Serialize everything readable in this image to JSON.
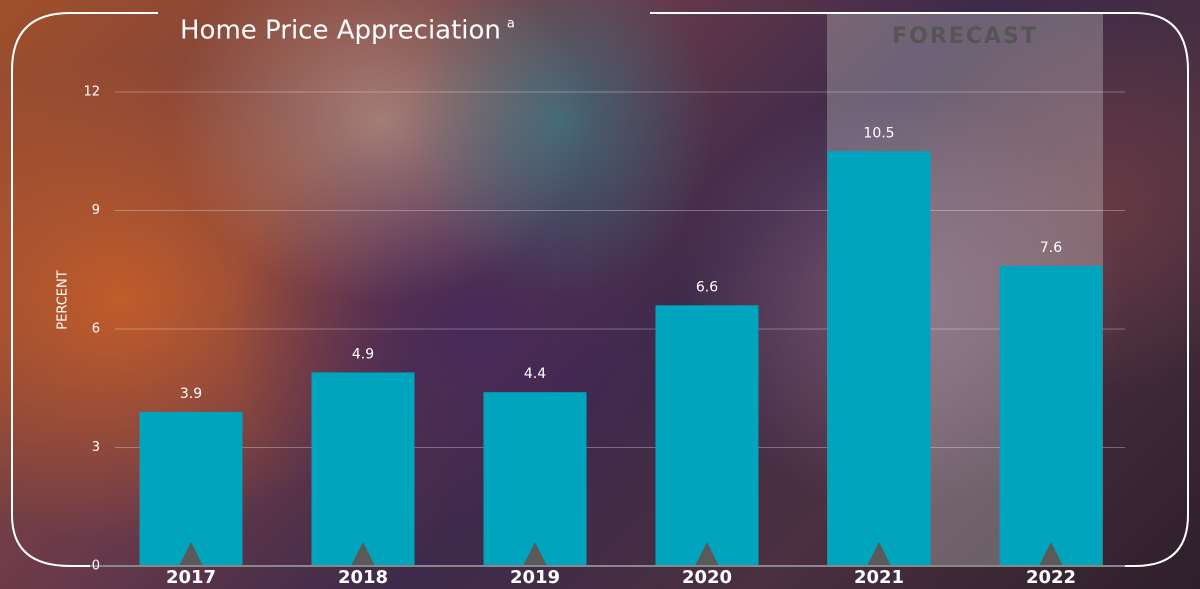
{
  "chart_data": {
    "type": "bar",
    "title": "Home Price Appreciation",
    "title_note": "a",
    "ylabel": "PERCENT",
    "categories": [
      "2017",
      "2018",
      "2019",
      "2020",
      "2021",
      "2022"
    ],
    "values": [
      3.9,
      4.9,
      4.4,
      6.6,
      10.5,
      7.6
    ],
    "color": "#00a5bd",
    "ylim": [
      0,
      12
    ],
    "yticks": [
      0,
      3,
      6,
      9,
      12
    ],
    "grid": true,
    "forecast": {
      "label": "FORECAST",
      "from": "2021",
      "to": "2022"
    }
  }
}
